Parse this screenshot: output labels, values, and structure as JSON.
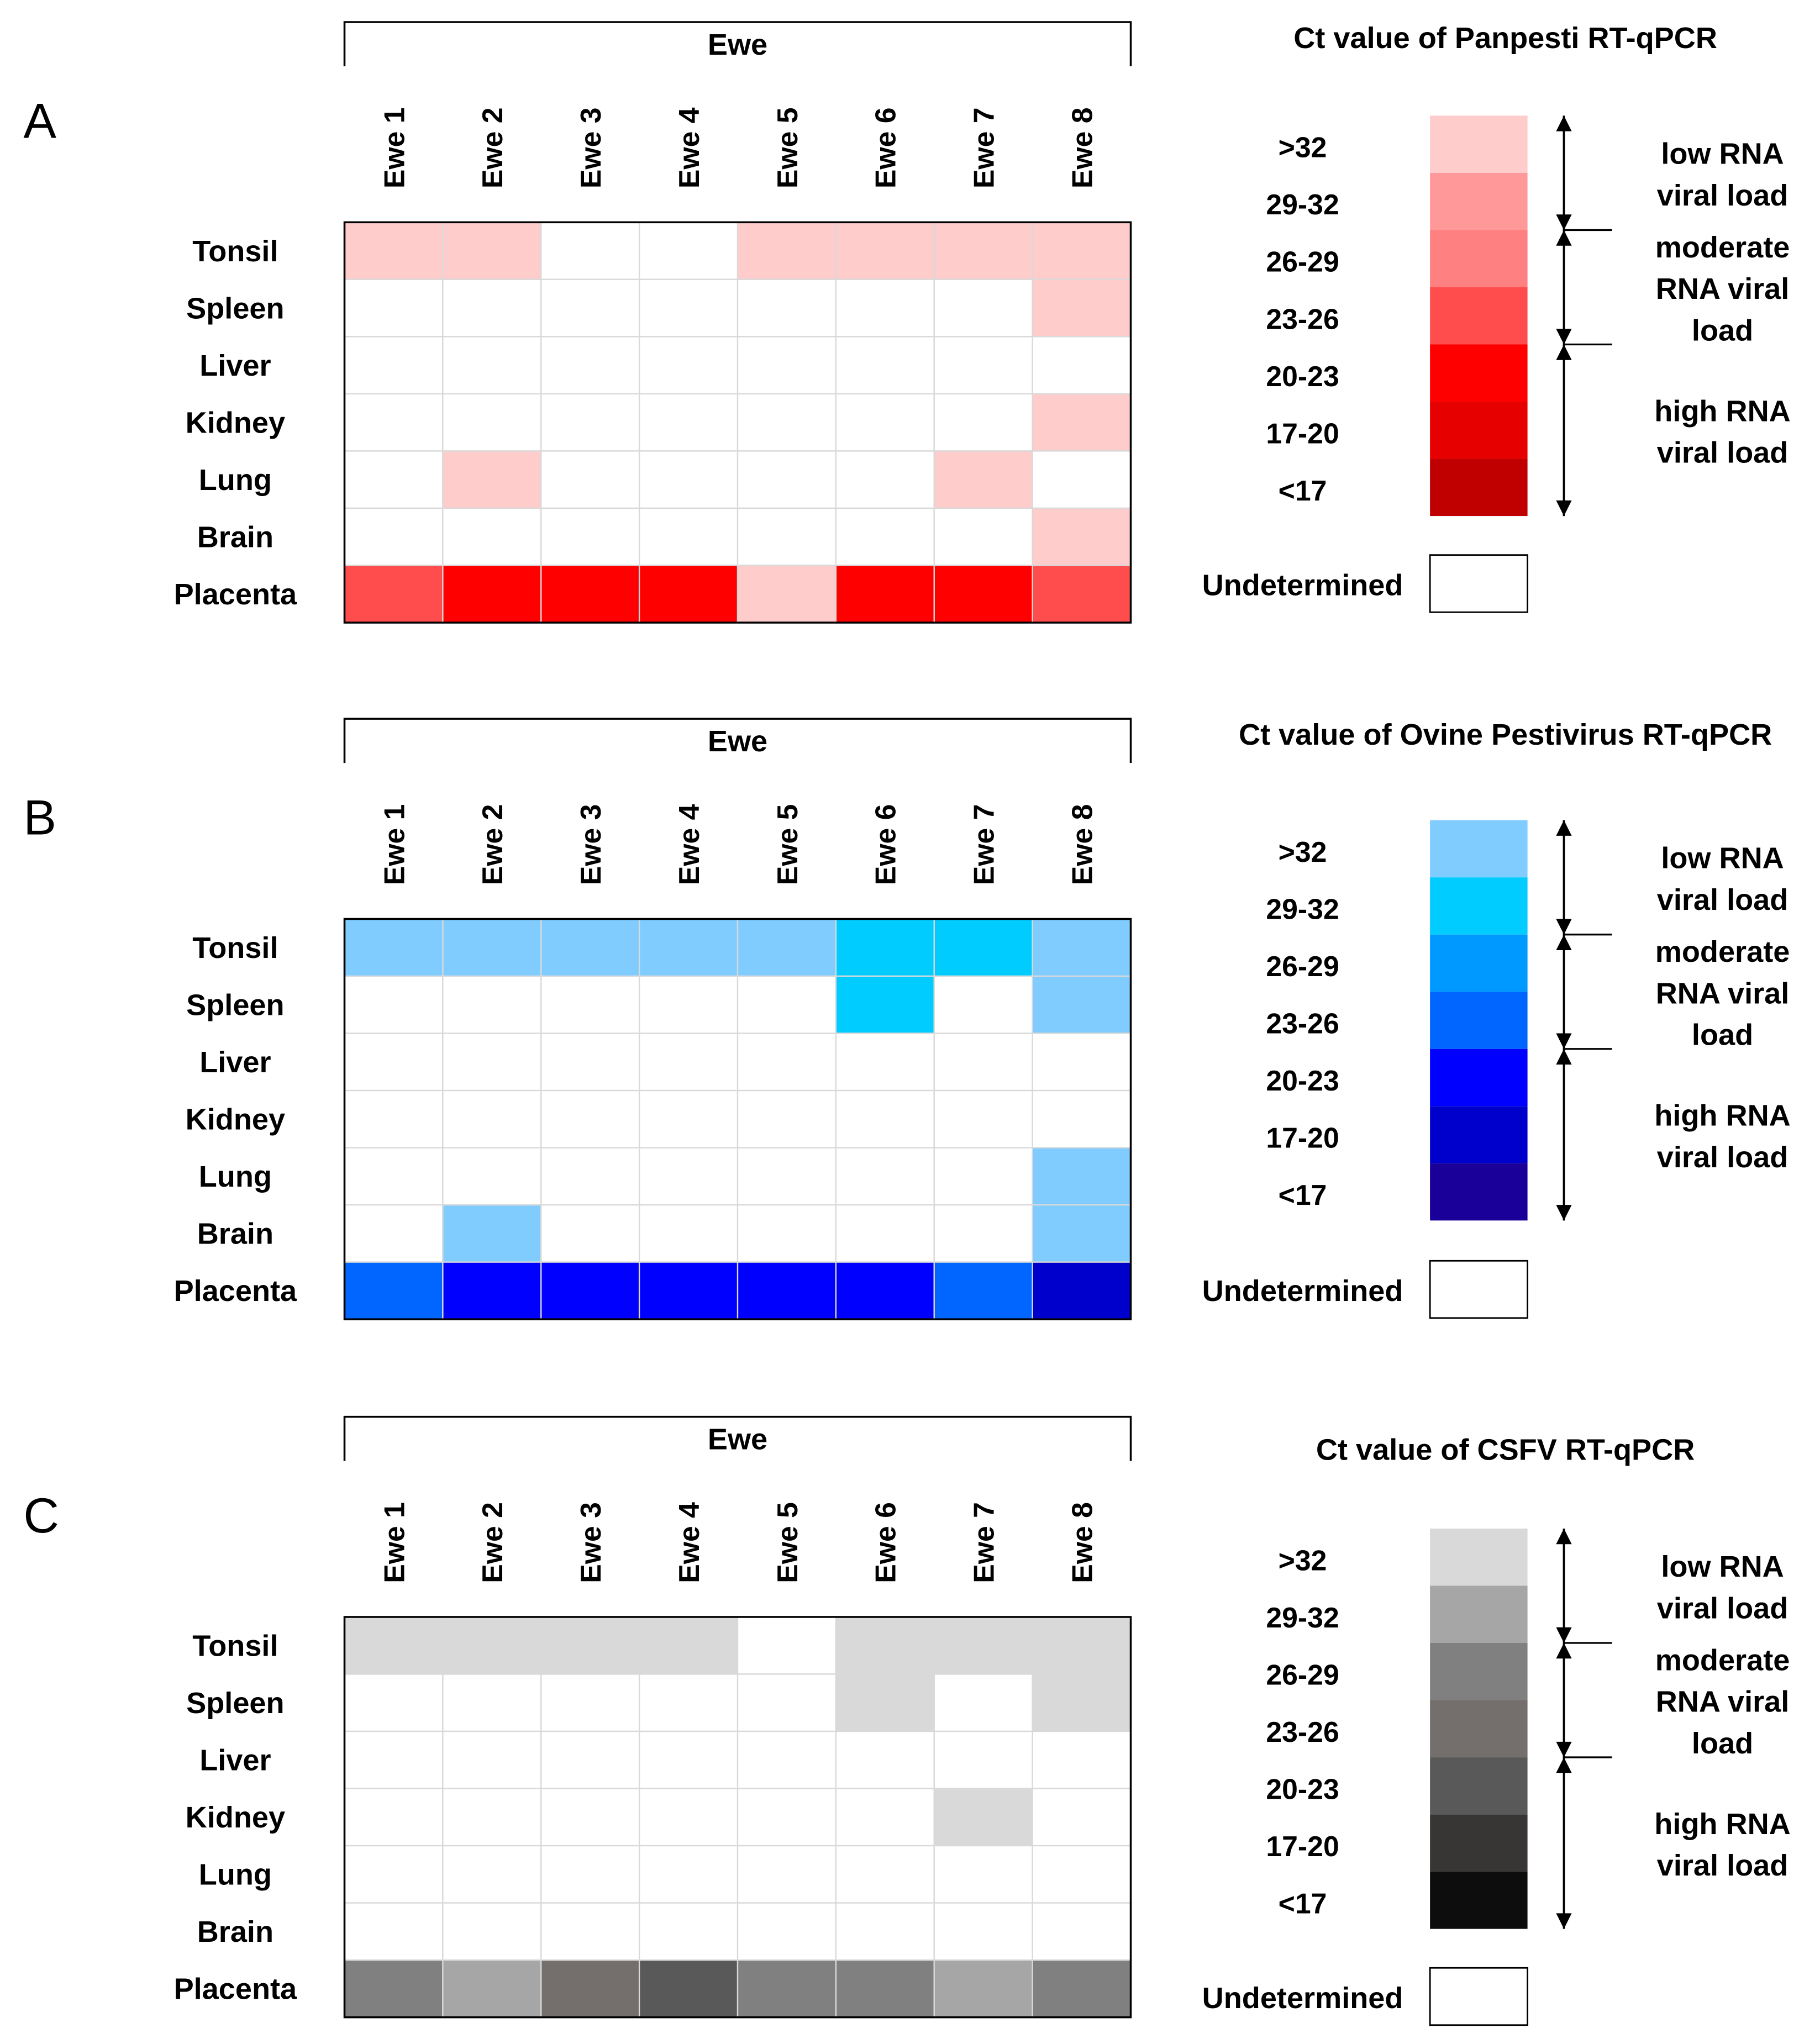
{
  "chart_data": [
    {
      "type": "heatmap",
      "panel_label": "A",
      "header": "Ewe",
      "columns": [
        "Ewe 1",
        "Ewe 2",
        "Ewe 3",
        "Ewe 4",
        "Ewe 5",
        "Ewe 6",
        "Ewe 7",
        "Ewe 8"
      ],
      "rows": [
        "Tonsil",
        "Spleen",
        "Liver",
        "Kidney",
        "Lung",
        "Brain",
        "Placenta"
      ],
      "values": [
        [
          ">32",
          ">32",
          "Undetermined",
          "Undetermined",
          ">32",
          ">32",
          ">32",
          ">32"
        ],
        [
          "Undetermined",
          "Undetermined",
          "Undetermined",
          "Undetermined",
          "Undetermined",
          "Undetermined",
          "Undetermined",
          ">32"
        ],
        [
          "Undetermined",
          "Undetermined",
          "Undetermined",
          "Undetermined",
          "Undetermined",
          "Undetermined",
          "Undetermined",
          "Undetermined"
        ],
        [
          "Undetermined",
          "Undetermined",
          "Undetermined",
          "Undetermined",
          "Undetermined",
          "Undetermined",
          "Undetermined",
          ">32"
        ],
        [
          "Undetermined",
          ">32",
          "Undetermined",
          "Undetermined",
          "Undetermined",
          "Undetermined",
          ">32",
          "Undetermined"
        ],
        [
          "Undetermined",
          "Undetermined",
          "Undetermined",
          "Undetermined",
          "Undetermined",
          "Undetermined",
          "Undetermined",
          ">32"
        ],
        [
          "23-26",
          "20-23",
          "20-23",
          "20-23",
          ">32",
          "20-23",
          "20-23",
          "23-26"
        ]
      ],
      "legend": {
        "title": "Ct value of Panpesti RT-qPCR",
        "bins": [
          ">32",
          "29-32",
          "26-29",
          "23-26",
          "20-23",
          "17-20",
          "<17"
        ],
        "colors": [
          "#ffcccc",
          "#ff9999",
          "#ff8080",
          "#ff4d4d",
          "#ff0000",
          "#e60000",
          "#c00000"
        ],
        "undetermined_label": "Undetermined",
        "undetermined_color": "#ffffff",
        "ranges": [
          [
            "low RNA",
            "viral load"
          ],
          [
            "moderate",
            "RNA viral",
            "load"
          ],
          [
            "high RNA",
            "viral load"
          ]
        ]
      }
    },
    {
      "type": "heatmap",
      "panel_label": "B",
      "header": "Ewe",
      "columns": [
        "Ewe 1",
        "Ewe 2",
        "Ewe 3",
        "Ewe 4",
        "Ewe 5",
        "Ewe 6",
        "Ewe 7",
        "Ewe 8"
      ],
      "rows": [
        "Tonsil",
        "Spleen",
        "Liver",
        "Kidney",
        "Lung",
        "Brain",
        "Placenta"
      ],
      "values": [
        [
          ">32",
          ">32",
          ">32",
          ">32",
          ">32",
          "29-32",
          "29-32",
          ">32"
        ],
        [
          "Undetermined",
          "Undetermined",
          "Undetermined",
          "Undetermined",
          "Undetermined",
          "29-32",
          "Undetermined",
          ">32"
        ],
        [
          "Undetermined",
          "Undetermined",
          "Undetermined",
          "Undetermined",
          "Undetermined",
          "Undetermined",
          "Undetermined",
          "Undetermined"
        ],
        [
          "Undetermined",
          "Undetermined",
          "Undetermined",
          "Undetermined",
          "Undetermined",
          "Undetermined",
          "Undetermined",
          "Undetermined"
        ],
        [
          "Undetermined",
          "Undetermined",
          "Undetermined",
          "Undetermined",
          "Undetermined",
          "Undetermined",
          "Undetermined",
          ">32"
        ],
        [
          "Undetermined",
          ">32",
          "Undetermined",
          "Undetermined",
          "Undetermined",
          "Undetermined",
          "Undetermined",
          ">32"
        ],
        [
          "23-26",
          "20-23",
          "20-23",
          "20-23",
          "20-23",
          "20-23",
          "23-26",
          "17-20"
        ]
      ],
      "legend": {
        "title": "Ct value of Ovine Pestivirus RT-qPCR",
        "bins": [
          ">32",
          "29-32",
          "26-29",
          "23-26",
          "20-23",
          "17-20",
          "<17"
        ],
        "colors": [
          "#80ccff",
          "#00ccff",
          "#0099ff",
          "#0066ff",
          "#0000ff",
          "#0000cc",
          "#1a0099"
        ],
        "undetermined_label": "Undetermined",
        "undetermined_color": "#ffffff",
        "ranges": [
          [
            "low RNA",
            "viral load"
          ],
          [
            "moderate",
            "RNA viral",
            "load"
          ],
          [
            "high RNA",
            "viral load"
          ]
        ]
      }
    },
    {
      "type": "heatmap",
      "panel_label": "C",
      "header": "Ewe",
      "columns": [
        "Ewe 1",
        "Ewe 2",
        "Ewe 3",
        "Ewe 4",
        "Ewe 5",
        "Ewe 6",
        "Ewe 7",
        "Ewe 8"
      ],
      "rows": [
        "Tonsil",
        "Spleen",
        "Liver",
        "Kidney",
        "Lung",
        "Brain",
        "Placenta"
      ],
      "values": [
        [
          ">32",
          ">32",
          ">32",
          ">32",
          "Undetermined",
          ">32",
          ">32",
          ">32"
        ],
        [
          "Undetermined",
          "Undetermined",
          "Undetermined",
          "Undetermined",
          "Undetermined",
          ">32",
          "Undetermined",
          ">32"
        ],
        [
          "Undetermined",
          "Undetermined",
          "Undetermined",
          "Undetermined",
          "Undetermined",
          "Undetermined",
          "Undetermined",
          "Undetermined"
        ],
        [
          "Undetermined",
          "Undetermined",
          "Undetermined",
          "Undetermined",
          "Undetermined",
          "Undetermined",
          ">32",
          "Undetermined"
        ],
        [
          "Undetermined",
          "Undetermined",
          "Undetermined",
          "Undetermined",
          "Undetermined",
          "Undetermined",
          "Undetermined",
          "Undetermined"
        ],
        [
          "Undetermined",
          "Undetermined",
          "Undetermined",
          "Undetermined",
          "Undetermined",
          "Undetermined",
          "Undetermined",
          "Undetermined"
        ],
        [
          "26-29",
          "29-32",
          "23-26",
          "20-23",
          "26-29",
          "26-29",
          "29-32",
          "26-29"
        ]
      ],
      "legend": {
        "title": "Ct value of CSFV RT-qPCR",
        "bins": [
          ">32",
          "29-32",
          "26-29",
          "23-26",
          "20-23",
          "17-20",
          "<17"
        ],
        "colors": [
          "#d9d9d9",
          "#a6a6a6",
          "#808080",
          "#746f6c",
          "#595959",
          "#383535",
          "#0d0d0d"
        ],
        "undetermined_label": "Undetermined",
        "undetermined_color": "#ffffff",
        "ranges": [
          [
            "low RNA",
            "viral load"
          ],
          [
            "moderate",
            "RNA viral",
            "load"
          ],
          [
            "high RNA",
            "viral load"
          ]
        ]
      }
    }
  ]
}
